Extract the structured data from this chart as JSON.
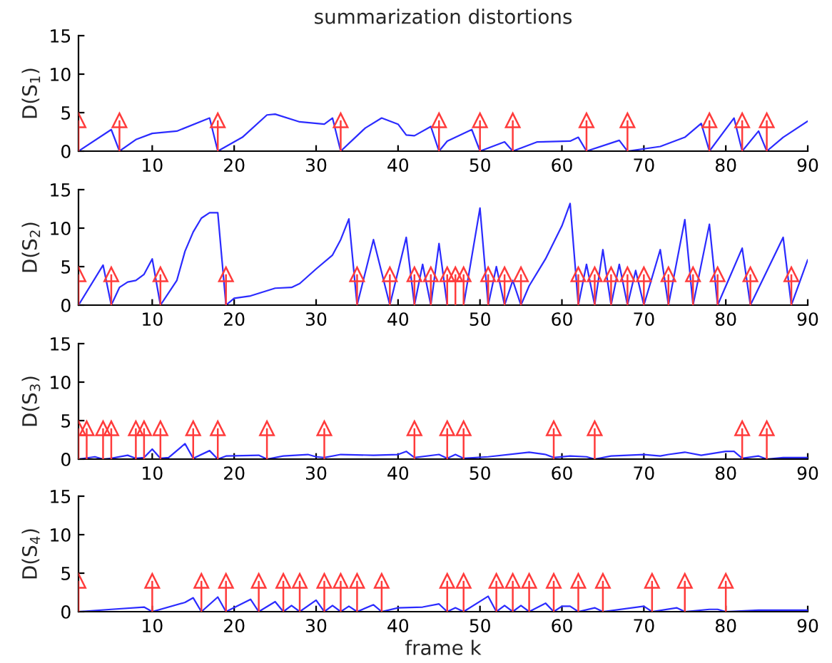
{
  "chart_data": [
    {
      "type": "line",
      "title": "summarization distortions",
      "ylabel": "D(S$_{1}$)",
      "xlim": [
        1,
        90
      ],
      "xticks": [
        10,
        20,
        30,
        40,
        50,
        60,
        70,
        80,
        90
      ],
      "ylim": [
        0,
        15
      ],
      "yticks": [
        0,
        5,
        10,
        15
      ],
      "series": [
        {
          "color": "#2b2bff",
          "x": [
            1,
            5,
            6,
            8,
            10,
            13,
            17,
            18,
            21,
            24,
            25,
            28,
            31,
            32,
            33,
            36,
            38,
            40,
            41,
            42,
            44,
            45,
            46,
            49,
            50,
            53,
            54,
            57,
            61,
            62,
            63,
            67,
            68,
            72,
            75,
            77,
            78,
            81,
            82,
            84,
            85,
            87,
            90
          ],
          "values": [
            0,
            2.8,
            0,
            1.5,
            2.3,
            2.6,
            4.3,
            0,
            1.8,
            4.7,
            4.8,
            3.8,
            3.5,
            4.3,
            0,
            3,
            4.3,
            3.5,
            2.1,
            2,
            3.2,
            0,
            1.3,
            2.8,
            0,
            1.2,
            0,
            1.2,
            1.3,
            1.8,
            0,
            1.4,
            0,
            0.6,
            1.8,
            3.6,
            0,
            4.3,
            0,
            2.6,
            0,
            1.8,
            3.9
          ]
        },
        {
          "type": "lollipop",
          "color": "#ff3b3b",
          "marker": "triangle",
          "x": [
            1,
            6,
            18,
            33,
            45,
            50,
            54,
            63,
            68,
            78,
            82,
            85
          ],
          "values": [
            4,
            4,
            4,
            4,
            4,
            4,
            4,
            4,
            4,
            4,
            4,
            4
          ]
        }
      ]
    },
    {
      "type": "line",
      "ylabel": "D(S$_{2}$)",
      "xlim": [
        1,
        90
      ],
      "xticks": [
        10,
        20,
        30,
        40,
        50,
        60,
        70,
        80,
        90
      ],
      "ylim": [
        0,
        15
      ],
      "yticks": [
        0,
        5,
        10,
        15
      ],
      "series": [
        {
          "color": "#2b2bff",
          "x": [
            1,
            4,
            5,
            6,
            7,
            8,
            9,
            10,
            11,
            13,
            14,
            15,
            16,
            17,
            18,
            19,
            20,
            22,
            25,
            27,
            28,
            30,
            32,
            33,
            34,
            35,
            37,
            39,
            41,
            42,
            43,
            44,
            45,
            46,
            47,
            48,
            50,
            51,
            52,
            53,
            54,
            55,
            56,
            58,
            60,
            61,
            62,
            63,
            64,
            65,
            66,
            67,
            68,
            69,
            70,
            72,
            73,
            75,
            76,
            78,
            79,
            82,
            83,
            87,
            88,
            90
          ],
          "values": [
            0,
            5.2,
            0,
            2.3,
            3,
            3.2,
            4,
            6,
            0,
            3.2,
            7,
            9.5,
            11.3,
            12,
            12,
            0,
            0.9,
            1.2,
            2.2,
            2.3,
            2.8,
            4.7,
            6.5,
            8.5,
            11.2,
            0,
            8.5,
            0,
            8.8,
            0,
            5.3,
            0,
            8,
            0,
            0,
            0,
            12.6,
            0,
            5,
            0,
            3.2,
            0,
            2.5,
            6,
            10.3,
            13.2,
            0,
            5.3,
            0,
            7.2,
            0,
            5.3,
            0,
            4.5,
            0,
            7.2,
            0,
            11.1,
            0,
            10.5,
            0,
            7.4,
            0,
            8.8,
            0,
            5.9
          ]
        },
        {
          "type": "lollipop",
          "color": "#ff3b3b",
          "marker": "triangle",
          "x": [
            1,
            5,
            11,
            19,
            35,
            39,
            42,
            44,
            46,
            47,
            48,
            51,
            53,
            55,
            62,
            64,
            66,
            68,
            70,
            73,
            76,
            79,
            83,
            88
          ],
          "values": [
            4,
            4,
            4,
            4,
            4,
            4,
            4,
            4,
            4,
            4,
            4,
            4,
            4,
            4,
            4,
            4,
            4,
            4,
            4,
            4,
            4,
            4,
            4,
            4
          ]
        }
      ]
    },
    {
      "type": "line",
      "ylabel": "D(S$_{3}$)",
      "xlim": [
        1,
        90
      ],
      "xticks": [
        10,
        20,
        30,
        40,
        50,
        60,
        70,
        80,
        90
      ],
      "ylim": [
        0,
        15
      ],
      "yticks": [
        0,
        5,
        10,
        15
      ],
      "series": [
        {
          "color": "#2b2bff",
          "x": [
            1,
            3,
            4,
            5,
            7,
            8,
            9,
            10,
            11,
            12,
            14,
            15,
            17,
            18,
            19,
            23,
            24,
            26,
            29,
            30,
            31,
            33,
            37,
            40,
            41,
            42,
            45,
            46,
            47,
            48,
            51,
            56,
            58,
            59,
            61,
            63,
            64,
            66,
            70,
            72,
            73,
            75,
            77,
            80,
            81,
            82,
            84,
            85,
            87,
            90
          ],
          "values": [
            0,
            0.3,
            0,
            0.1,
            0.5,
            0.1,
            0.2,
            1.3,
            0.1,
            0.2,
            2,
            0.1,
            1.1,
            0,
            0.4,
            0.5,
            0,
            0.4,
            0.6,
            0.3,
            0.2,
            0.6,
            0.5,
            0.6,
            1,
            0.2,
            0.6,
            0.1,
            0.6,
            0.1,
            0.3,
            0.9,
            0.6,
            0.2,
            0.4,
            0.3,
            0,
            0.4,
            0.6,
            0.4,
            0.6,
            0.9,
            0.5,
            1,
            1,
            0.1,
            0.4,
            0,
            0.2,
            0.2
          ]
        },
        {
          "type": "lollipop",
          "color": "#ff3b3b",
          "marker": "triangle",
          "x": [
            1,
            2,
            4,
            5,
            8,
            9,
            11,
            15,
            18,
            24,
            31,
            42,
            46,
            48,
            59,
            64,
            82,
            85
          ],
          "values": [
            4,
            4,
            4,
            4,
            4,
            4,
            4,
            4,
            4,
            4,
            4,
            4,
            4,
            4,
            4,
            4,
            4,
            4
          ]
        }
      ]
    },
    {
      "type": "line",
      "ylabel": "D(S$_{4}$)",
      "xlabel": "frame k",
      "xlim": [
        1,
        90
      ],
      "xticks": [
        10,
        20,
        30,
        40,
        50,
        60,
        70,
        80,
        90
      ],
      "ylim": [
        0,
        15
      ],
      "yticks": [
        0,
        5,
        10,
        15
      ],
      "series": [
        {
          "color": "#2b2bff",
          "x": [
            1,
            5,
            9,
            10,
            14,
            15,
            16,
            18,
            19,
            22,
            23,
            25,
            26,
            27,
            28,
            30,
            31,
            32,
            33,
            34,
            35,
            37,
            38,
            40,
            43,
            45,
            46,
            47,
            48,
            51,
            52,
            53,
            54,
            55,
            56,
            58,
            59,
            60,
            61,
            62,
            64,
            65,
            70,
            71,
            74,
            75,
            78,
            79,
            80,
            84,
            90
          ],
          "values": [
            0,
            0.3,
            0.6,
            0,
            1.2,
            1.8,
            0,
            1.9,
            0,
            1.6,
            0,
            1.3,
            0,
            0.8,
            0,
            1.5,
            0,
            0.8,
            0,
            0.7,
            0,
            0.9,
            0,
            0.5,
            0.6,
            1,
            0,
            0.5,
            0,
            2,
            0,
            0.8,
            0,
            0.8,
            0,
            1.1,
            0,
            0.7,
            0.7,
            0,
            0.5,
            0,
            0.7,
            0,
            0.5,
            0,
            0.3,
            0.3,
            0,
            0.2,
            0.2
          ]
        },
        {
          "type": "lollipop",
          "color": "#ff3b3b",
          "marker": "triangle",
          "x": [
            1,
            10,
            16,
            19,
            23,
            26,
            28,
            31,
            33,
            35,
            38,
            46,
            48,
            52,
            54,
            56,
            59,
            62,
            65,
            71,
            75,
            80
          ],
          "values": [
            4,
            4,
            4,
            4,
            4,
            4,
            4,
            4,
            4,
            4,
            4,
            4,
            4,
            4,
            4,
            4,
            4,
            4,
            4,
            4,
            4,
            4
          ]
        }
      ]
    }
  ]
}
